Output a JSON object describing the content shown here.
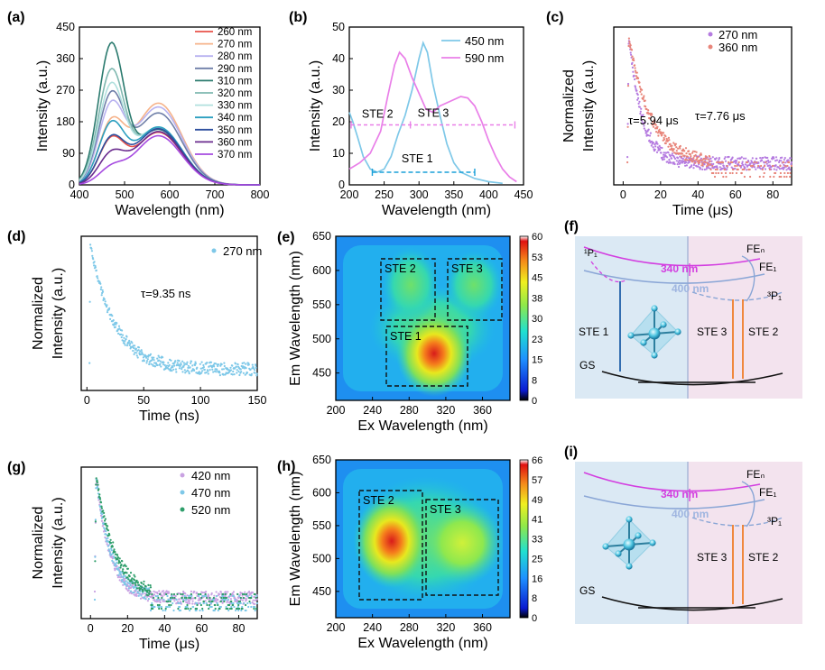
{
  "colors": {
    "axis": "#000000",
    "pink": "#e97fe8",
    "lightblue": "#7ec8e8",
    "salmon": "#e8857a",
    "violet": "#b57be0",
    "cyan": "#1aa0d8",
    "magenta": "#d33fe0",
    "steelblue": "#8aa6d6",
    "orange": "#f07d2a",
    "darkblue": "#1f5fa8",
    "green": "#2e9e6a",
    "bgblue": "#dbe9f4",
    "bgpink": "#f3e3ee"
  },
  "chart_data": [
    {
      "id": "a",
      "type": "line",
      "panel_label": "(a)",
      "xlabel": "Wavelength (nm)",
      "ylabel": "Intensity (a.u.)",
      "xlim": [
        400,
        800
      ],
      "ylim": [
        0,
        450
      ],
      "xticks": [
        400,
        500,
        600,
        700,
        800
      ],
      "yticks": [
        0,
        90,
        180,
        270,
        360,
        450
      ],
      "series": [
        {
          "name": "260 nm",
          "color": "#e8524a",
          "peak1": 118,
          "peak2": 150
        },
        {
          "name": "270 nm",
          "color": "#f6b38a",
          "peak1": 160,
          "peak2": 233
        },
        {
          "name": "280 nm",
          "color": "#b8b2f0",
          "peak1": 210,
          "peak2": 222
        },
        {
          "name": "290 nm",
          "color": "#6f7fa8",
          "peak1": 240,
          "peak2": 205
        },
        {
          "name": "310 nm",
          "color": "#2a7a6e",
          "peak1": 385,
          "peak2": 158
        },
        {
          "name": "320 nm",
          "color": "#7fb8b0",
          "peak1": 310,
          "peak2": 162
        },
        {
          "name": "330 nm",
          "color": "#b0e0de",
          "peak1": 270,
          "peak2": 165
        },
        {
          "name": "340 nm",
          "color": "#2c9fc0",
          "peak1": 160,
          "peak2": 165
        },
        {
          "name": "350 nm",
          "color": "#2d4f9e",
          "peak1": 120,
          "peak2": 160
        },
        {
          "name": "360 nm",
          "color": "#6a2b8e",
          "peak1": 78,
          "peak2": 152
        },
        {
          "name": "370 nm",
          "color": "#a64be0",
          "peak1": 40,
          "peak2": 140
        }
      ]
    },
    {
      "id": "b",
      "type": "line",
      "panel_label": "(b)",
      "xlabel": "Wavelength (nm)",
      "ylabel": "Intensity (a.u.)",
      "xlim": [
        200,
        450
      ],
      "ylim": [
        0,
        50
      ],
      "xticks": [
        200,
        250,
        300,
        350,
        400,
        450
      ],
      "yticks": [
        0,
        10,
        20,
        30,
        40,
        50
      ],
      "series": [
        {
          "name": "450 nm",
          "color": "#7ec8e8",
          "x": [
            200,
            205,
            212,
            220,
            230,
            240,
            250,
            260,
            270,
            280,
            290,
            300,
            306,
            312,
            320,
            330,
            340,
            350,
            360,
            380,
            400,
            420
          ],
          "y": [
            23,
            20,
            15,
            9,
            5,
            4,
            5,
            9,
            16,
            22,
            30,
            40,
            45,
            42,
            32,
            22,
            13,
            7,
            4,
            2,
            1,
            0.5
          ]
        },
        {
          "name": "590 nm",
          "color": "#e97fe8",
          "x": [
            200,
            215,
            230,
            245,
            255,
            265,
            272,
            280,
            290,
            300,
            310,
            320,
            330,
            340,
            350,
            360,
            370,
            380,
            390,
            400,
            410,
            420,
            430,
            440
          ],
          "y": [
            5,
            7,
            10,
            17,
            28,
            38,
            42,
            40,
            34,
            29,
            24,
            23,
            25,
            26,
            27,
            28,
            27.5,
            25,
            20,
            14,
            9,
            5,
            2.5,
            1
          ]
        }
      ],
      "annotations": [
        "STE 2",
        "STE 3",
        "STE 1"
      ]
    },
    {
      "id": "c",
      "type": "scatter",
      "panel_label": "(c)",
      "xlabel": "Time (μs)",
      "ylabel": "Normalized Intensity (a.u.)",
      "xlim": [
        -5,
        90
      ],
      "xticks": [
        0,
        20,
        40,
        60,
        80
      ],
      "series": [
        {
          "name": "270 nm",
          "color": "#b57be0",
          "tau": 5.94
        },
        {
          "name": "360 nm",
          "color": "#e8857a",
          "tau": 7.76
        }
      ],
      "labels": [
        "τ=7.76 μs",
        "τ=5.94 μs"
      ]
    },
    {
      "id": "d",
      "type": "scatter",
      "panel_label": "(d)",
      "xlabel": "Time (ns)",
      "ylabel": "Normalized Intensity (a.u.)",
      "xlim": [
        -5,
        150
      ],
      "xticks": [
        0,
        50,
        100,
        150
      ],
      "series": [
        {
          "name": "270 nm",
          "color": "#7ec8e8",
          "tau": 9.35
        }
      ],
      "labels": [
        "τ=9.35 ns"
      ]
    },
    {
      "id": "e",
      "type": "heatmap",
      "panel_label": "(e)",
      "xlabel": "Ex Wavelength (nm)",
      "ylabel": "Em Wavelength (nm)",
      "xlim": [
        200,
        390
      ],
      "ylim": [
        410,
        650
      ],
      "xticks": [
        200,
        240,
        280,
        320,
        360
      ],
      "yticks": [
        450,
        500,
        550,
        600,
        650
      ],
      "colorbar": [
        0,
        8,
        15,
        23,
        30,
        38,
        45,
        53,
        60
      ],
      "boxes": [
        "STE 2",
        "STE 3",
        "STE 1"
      ]
    },
    {
      "id": "g",
      "type": "scatter",
      "panel_label": "(g)",
      "xlabel": "Time (μs)",
      "ylabel": "Normalized Intensity (a.u.)",
      "xlim": [
        -5,
        90
      ],
      "xticks": [
        0,
        20,
        40,
        60,
        80
      ],
      "series": [
        {
          "name": "420 nm",
          "color": "#c9a2e2"
        },
        {
          "name": "470 nm",
          "color": "#7ec8e8"
        },
        {
          "name": "520 nm",
          "color": "#2e9e6a"
        }
      ]
    },
    {
      "id": "h",
      "type": "heatmap",
      "panel_label": "(h)",
      "xlabel": "Ex Wavelength (nm)",
      "ylabel": "Em Wavelength (nm)",
      "xlim": [
        200,
        390
      ],
      "ylim": [
        410,
        650
      ],
      "xticks": [
        200,
        240,
        280,
        320,
        360
      ],
      "yticks": [
        450,
        500,
        550,
        600,
        650
      ],
      "colorbar": [
        0,
        8,
        16,
        25,
        33,
        41,
        49,
        57,
        66
      ],
      "boxes": [
        "STE 2",
        "STE 3"
      ]
    }
  ],
  "diagrams": {
    "f": {
      "panel_label": "(f)",
      "labels": {
        "p1": "¹P₁",
        "fen": "FEₙ",
        "fe1": "FE₁",
        "p3": "³P₁",
        "w340": "340 nm",
        "w400": "400 nm",
        "ste1": "STE 1",
        "ste3": "STE 3",
        "ste2": "STE 2",
        "gs": "GS"
      }
    },
    "i": {
      "panel_label": "(i)",
      "labels": {
        "fen": "FEₙ",
        "fe1": "FE₁",
        "p3": "³P₁",
        "w340": "340 nm",
        "w400": "400 nm",
        "ste3": "STE 3",
        "ste2": "STE 2",
        "gs": "GS"
      }
    }
  }
}
